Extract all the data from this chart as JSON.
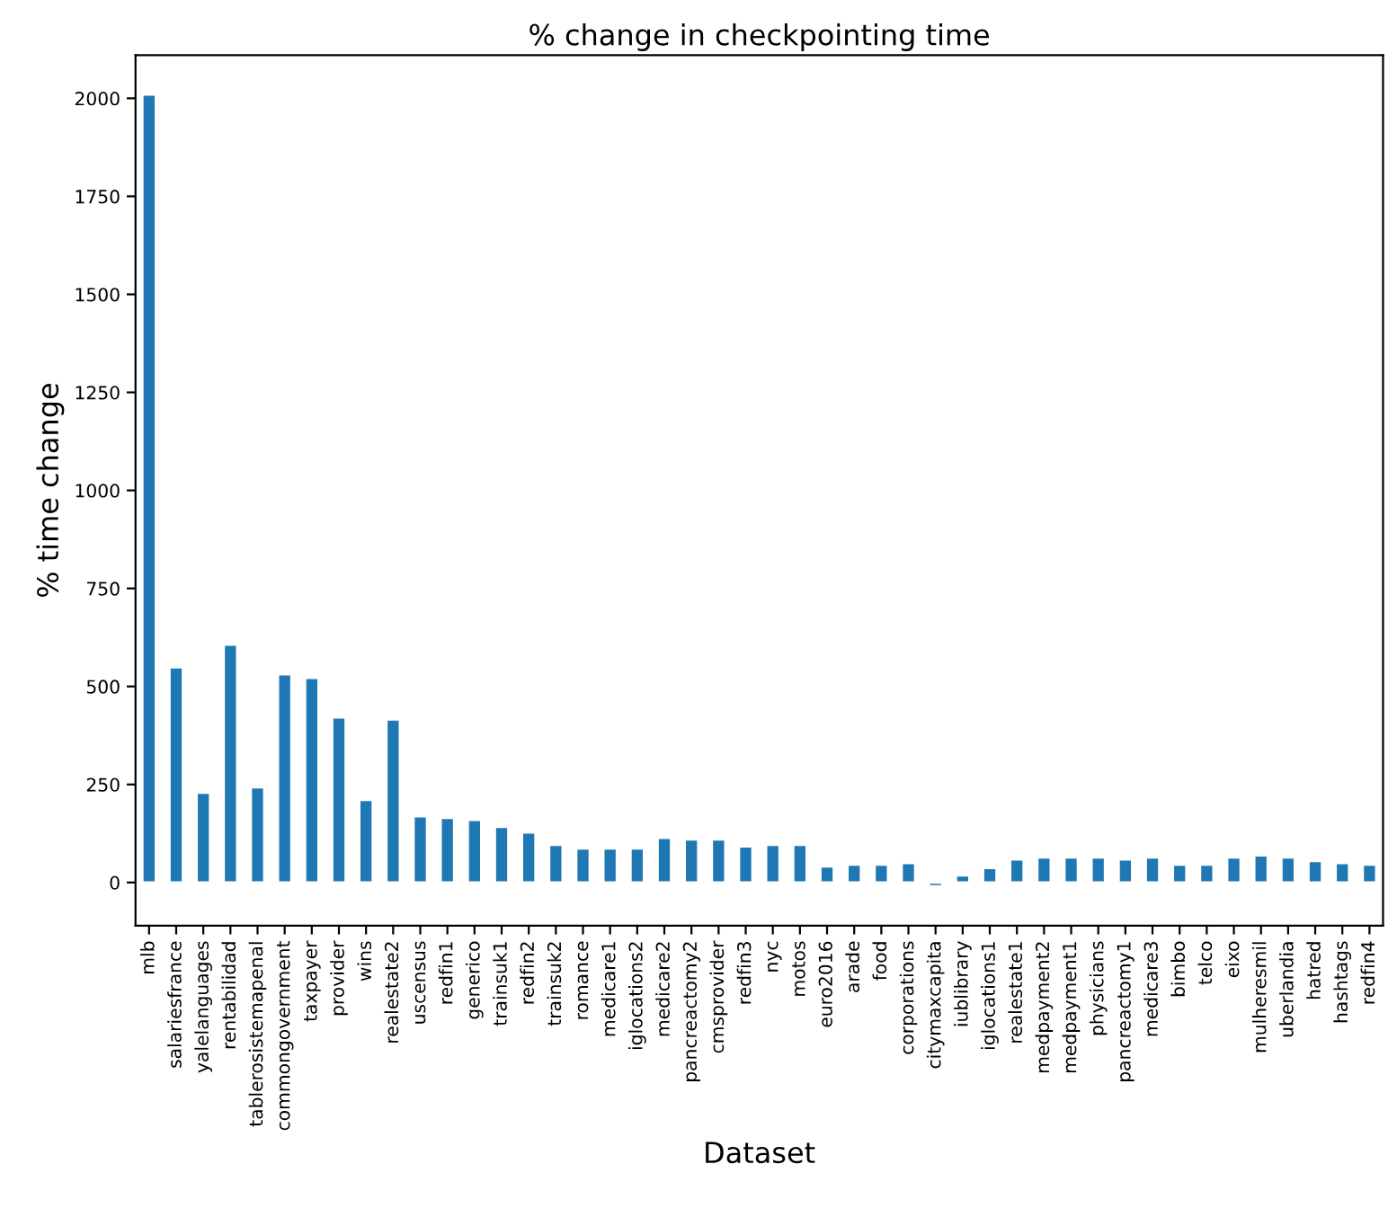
{
  "chart_data": {
    "type": "bar",
    "title": "% change in checkpointing time",
    "xlabel": "Dataset",
    "ylabel": "% time change",
    "categories": [
      "mlb",
      "salariesfrance",
      "yalelanguages",
      "rentabilidad",
      "tablerosistemapenal",
      "commongovernment",
      "taxpayer",
      "provider",
      "wins",
      "realestate2",
      "uscensus",
      "redfin1",
      "generico",
      "trainsuk1",
      "redfin2",
      "trainsuk2",
      "romance",
      "medicare1",
      "iglocations2",
      "medicare2",
      "pancreactomy2",
      "cmsprovider",
      "redfin3",
      "nyc",
      "motos",
      "euro2016",
      "arade",
      "food",
      "corporations",
      "citymaxcapita",
      "iublibrary",
      "iglocations1",
      "realestate1",
      "medpayment2",
      "medpayment1",
      "physicians",
      "pancreactomy1",
      "medicare3",
      "bimbo",
      "telco",
      "eixo",
      "mulheresmil",
      "uberlandia",
      "hatred",
      "hashtags",
      "redfin4"
    ],
    "values": [
      2010,
      549,
      229,
      607,
      243,
      531,
      522,
      421,
      211,
      416,
      169,
      165,
      160,
      142,
      128,
      96,
      87,
      87,
      87,
      114,
      110,
      110,
      92,
      96,
      96,
      41,
      46,
      46,
      50,
      -10,
      18,
      37,
      59,
      64,
      64,
      64,
      59,
      64,
      46,
      46,
      64,
      69,
      64,
      55,
      50,
      46
    ],
    "color": "#1f77b4",
    "ylim": [
      -110,
      2110
    ],
    "yticks": [
      0,
      250,
      500,
      750,
      1000,
      1250,
      1500,
      1750,
      2000
    ],
    "grid": false,
    "legend": false
  }
}
